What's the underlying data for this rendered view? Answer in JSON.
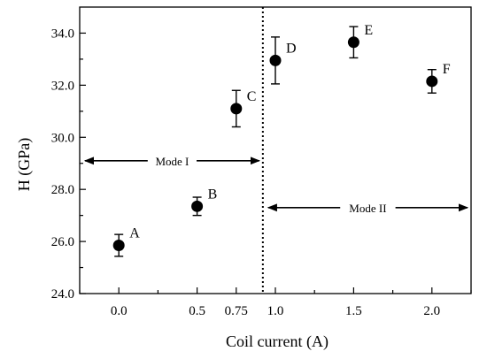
{
  "chart_data": {
    "type": "scatter",
    "xlabel": "Coil current (A)",
    "ylabel": "H (GPa)",
    "xlim": [
      -0.25,
      2.25
    ],
    "ylim": [
      24.0,
      35.0
    ],
    "x_ticks": [
      0.0,
      0.5,
      0.75,
      1.0,
      1.5,
      2.0
    ],
    "x_tick_labels": [
      "0.0",
      "0.5",
      "0.75",
      "1.0",
      "1.5",
      "2.0"
    ],
    "y_ticks": [
      24.0,
      26.0,
      28.0,
      30.0,
      32.0,
      34.0
    ],
    "y_tick_labels": [
      "24.0",
      "26.0",
      "28.0",
      "30.0",
      "32.0",
      "34.0"
    ],
    "points": [
      {
        "label": "A",
        "x": 0.0,
        "y": 25.85,
        "err": 0.42
      },
      {
        "label": "B",
        "x": 0.5,
        "y": 27.35,
        "err": 0.35
      },
      {
        "label": "C",
        "x": 0.75,
        "y": 31.1,
        "err": 0.7
      },
      {
        "label": "D",
        "x": 1.0,
        "y": 32.95,
        "err": 0.9
      },
      {
        "label": "E",
        "x": 1.5,
        "y": 33.65,
        "err": 0.6
      },
      {
        "label": "F",
        "x": 2.0,
        "y": 32.15,
        "err": 0.45
      }
    ],
    "divider_x": 0.92,
    "regions": [
      {
        "label": "Mode I",
        "x_from": -0.25,
        "x_to": 0.92,
        "y": 29.1
      },
      {
        "label": "Mode II",
        "x_from": 0.92,
        "x_to": 2.25,
        "y": 27.3
      }
    ],
    "grid": false
  }
}
